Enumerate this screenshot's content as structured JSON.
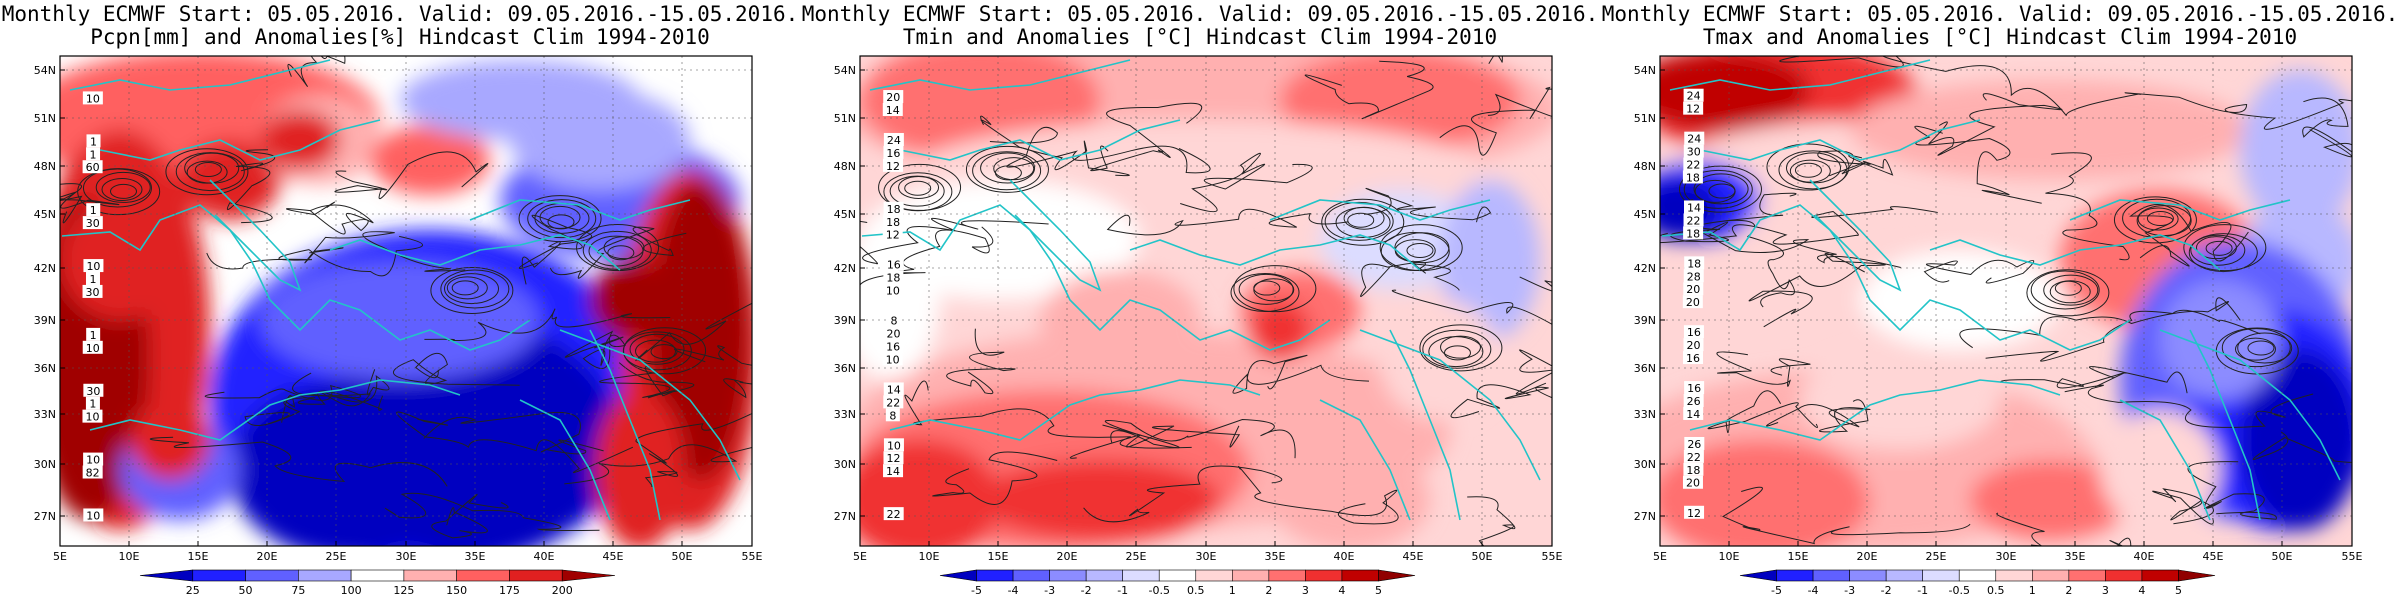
{
  "panels": [
    {
      "id": "precip",
      "title_line1": "Monthly ECMWF Start: 05.05.2016. Valid: 09.05.2016.-15.05.2016.",
      "title_line2": "Pcpn[mm] and Anomalies[%] Hindcast Clim 1994-2010",
      "colorbar_ticks": [
        "25",
        "50",
        "75",
        "100",
        "125",
        "150",
        "175",
        "200"
      ],
      "contour_labels": [
        "10",
        "30",
        "60",
        "82",
        "10",
        "30",
        "10",
        "1",
        "1",
        "1",
        "10",
        "1",
        "1",
        "10",
        "30",
        "10",
        "1"
      ],
      "colors": [
        "#0000c0",
        "#2020ff",
        "#6060ff",
        "#a8a8ff",
        "#ffffff",
        "#ffb0b0",
        "#ff6060",
        "#e02020",
        "#a00000"
      ]
    },
    {
      "id": "tmin",
      "title_line1": "Monthly ECMWF Start: 05.05.2016. Valid: 09.05.2016.-15.05.2016.",
      "title_line2": "Tmin and Anomalies [°C] Hindcast Clim 1994-2010",
      "colorbar_ticks": [
        "-5",
        "-4",
        "-3",
        "-2",
        "-1",
        "-0.5",
        "0.5",
        "1",
        "2",
        "3",
        "4",
        "5"
      ],
      "contour_labels": [
        "10",
        "12",
        "14",
        "8",
        "10",
        "12",
        "14",
        "16",
        "18",
        "20",
        "22",
        "18",
        "16",
        "12",
        "20",
        "18",
        "22",
        "14",
        "16",
        "24",
        "10",
        "8"
      ],
      "colors": [
        "#0000c0",
        "#2020ff",
        "#6060ff",
        "#8c8cff",
        "#b8b8ff",
        "#dcdcff",
        "#ffffff",
        "#ffd6d6",
        "#ffb0b0",
        "#ff7070",
        "#f03030",
        "#c00000",
        "#900000"
      ]
    },
    {
      "id": "tmax",
      "title_line1": "Monthly ECMWF Start: 05.05.2016. Valid: 09.05.2016.-15.05.2016.",
      "title_line2": "Tmax and Anomalies [°C] Hindcast Clim 1994-2010",
      "colorbar_ticks": [
        "-5",
        "-4",
        "-3",
        "-2",
        "-1",
        "-0.5",
        "0.5",
        "1",
        "2",
        "3",
        "4",
        "5"
      ],
      "contour_labels": [
        "20",
        "18",
        "20",
        "16",
        "18",
        "12",
        "14",
        "20",
        "22",
        "18",
        "20",
        "22",
        "24",
        "26",
        "28",
        "30",
        "22",
        "16",
        "14",
        "12",
        "16",
        "18",
        "24",
        "26"
      ],
      "colors": [
        "#0000c0",
        "#2020ff",
        "#6060ff",
        "#8c8cff",
        "#b8b8ff",
        "#dcdcff",
        "#ffffff",
        "#ffd6d6",
        "#ffb0b0",
        "#ff7070",
        "#f03030",
        "#c00000",
        "#900000"
      ]
    }
  ],
  "axes": {
    "lat_labels": [
      "54N",
      "51N",
      "48N",
      "45N",
      "42N",
      "39N",
      "36N",
      "33N",
      "30N",
      "27N"
    ],
    "lon_labels": [
      "5E",
      "10E",
      "15E",
      "20E",
      "25E",
      "30E",
      "35E",
      "40E",
      "45E",
      "50E",
      "55E"
    ]
  }
}
